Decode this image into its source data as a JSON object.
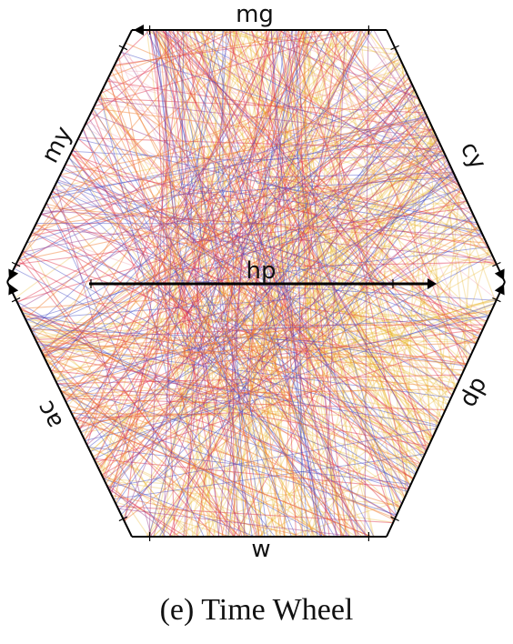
{
  "chart_data": {
    "type": "time-wheel",
    "axes": [
      "mg",
      "cy",
      "dp",
      "w",
      "ac",
      "my"
    ],
    "center_axis": "hp",
    "colors": {
      "yellow": "#e8b421",
      "orange": "#ef7a2a",
      "red": "#e0304a",
      "blue": "#4a52c8",
      "purple": "#9a3a8a",
      "pink": "#f09ab0"
    }
  },
  "caption": "(e) Time Wheel"
}
